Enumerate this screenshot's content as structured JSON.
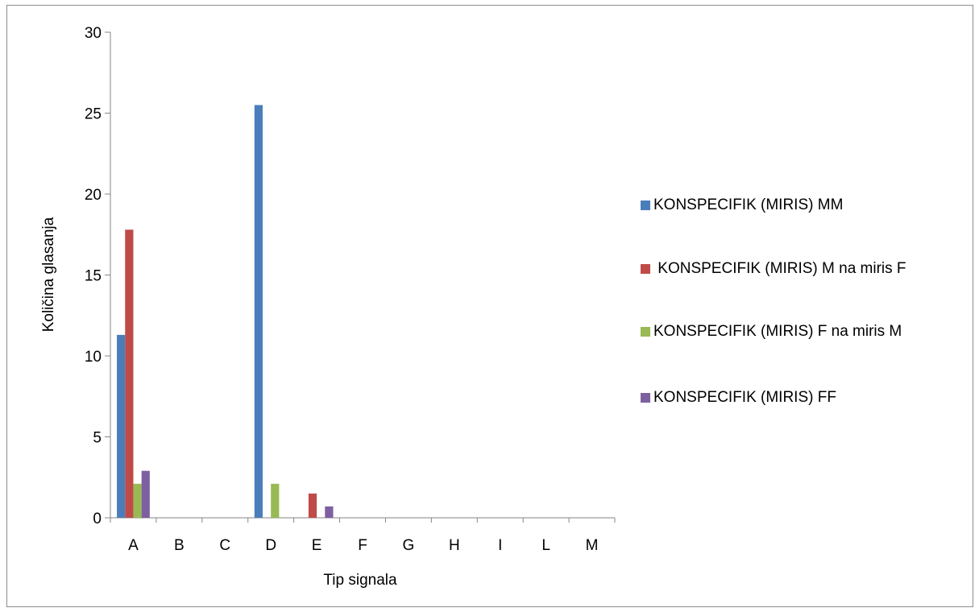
{
  "chart_data": {
    "type": "bar",
    "categories": [
      "A",
      "B",
      "C",
      "D",
      "E",
      "F",
      "G",
      "H",
      "I",
      "L",
      "M"
    ],
    "series": [
      {
        "name": "KONSPECIFIK (MIRIS) MM",
        "color": "#4a7ebb",
        "values": [
          11.3,
          0,
          0,
          25.5,
          0,
          0,
          0,
          0,
          0,
          0,
          0
        ]
      },
      {
        "name": " KONSPECIFIK (MIRIS) M na miris F",
        "color": "#be4b48",
        "values": [
          17.8,
          0,
          0,
          0,
          1.5,
          0,
          0,
          0,
          0,
          0,
          0
        ]
      },
      {
        "name": "KONSPECIFIK (MIRIS) F na miris M",
        "color": "#98b954",
        "values": [
          2.1,
          0,
          0,
          2.1,
          0,
          0,
          0,
          0,
          0,
          0,
          0
        ]
      },
      {
        "name": "KONSPECIFIK (MIRIS) FF",
        "color": "#7d60a0",
        "values": [
          2.9,
          0,
          0,
          0,
          0.7,
          0,
          0,
          0,
          0,
          0,
          0
        ]
      }
    ],
    "xlabel": "Tip signala",
    "ylabel": "Količina glasanja",
    "ylim": [
      0,
      30
    ],
    "yticks": [
      "0",
      "5",
      "10",
      "15",
      "20",
      "25",
      "30"
    ],
    "legend_position": "right",
    "grid": false
  }
}
